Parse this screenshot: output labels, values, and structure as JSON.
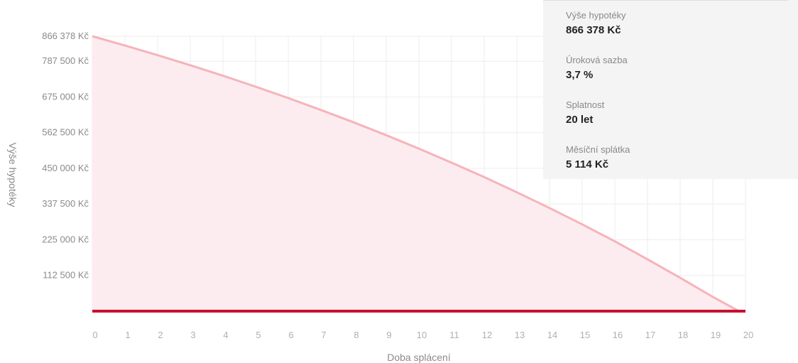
{
  "chart_data": {
    "type": "area",
    "xlabel": "Doba splácení",
    "ylabel": "Výše hypotéky",
    "x": [
      0,
      1,
      2,
      3,
      4,
      5,
      6,
      7,
      8,
      9,
      10,
      11,
      12,
      13,
      14,
      15,
      16,
      17,
      18,
      19,
      19.8
    ],
    "y": [
      866378,
      837000,
      806500,
      775000,
      742000,
      707500,
      671700,
      634000,
      595000,
      554500,
      512000,
      468000,
      422500,
      374500,
      325000,
      273500,
      220000,
      163500,
      105000,
      45000,
      0
    ],
    "xticks": [
      "0",
      "1",
      "2",
      "3",
      "4",
      "5",
      "6",
      "7",
      "8",
      "9",
      "10",
      "11",
      "12",
      "13",
      "14",
      "15",
      "16",
      "17",
      "18",
      "19",
      "20"
    ],
    "yticks": [
      {
        "value": 866378,
        "label": "866 378 Kč"
      },
      {
        "value": 787500,
        "label": "787 500 Kč"
      },
      {
        "value": 675000,
        "label": "675 000 Kč"
      },
      {
        "value": 562500,
        "label": "562 500 Kč"
      },
      {
        "value": 450000,
        "label": "450 000 Kč"
      },
      {
        "value": 337500,
        "label": "337 500 Kč"
      },
      {
        "value": 225000,
        "label": "225 000 Kč"
      },
      {
        "value": 112500,
        "label": "112 500 Kč"
      }
    ],
    "xlim": [
      0,
      20
    ],
    "ylim": [
      0,
      866378
    ],
    "grid": true,
    "colors": {
      "line": "#f6b3ba",
      "fill": "#fcecef",
      "baseline": "#c8102e",
      "grid": "#eeeeee"
    }
  },
  "info": {
    "items": [
      {
        "label": "Výše hypotéky",
        "value": "866 378 Kč"
      },
      {
        "label": "Úroková sazba",
        "value": "3,7 %"
      },
      {
        "label": "Splatnost",
        "value": "20 let"
      },
      {
        "label": "Měsíční splátka",
        "value": "5 114 Kč"
      }
    ]
  }
}
